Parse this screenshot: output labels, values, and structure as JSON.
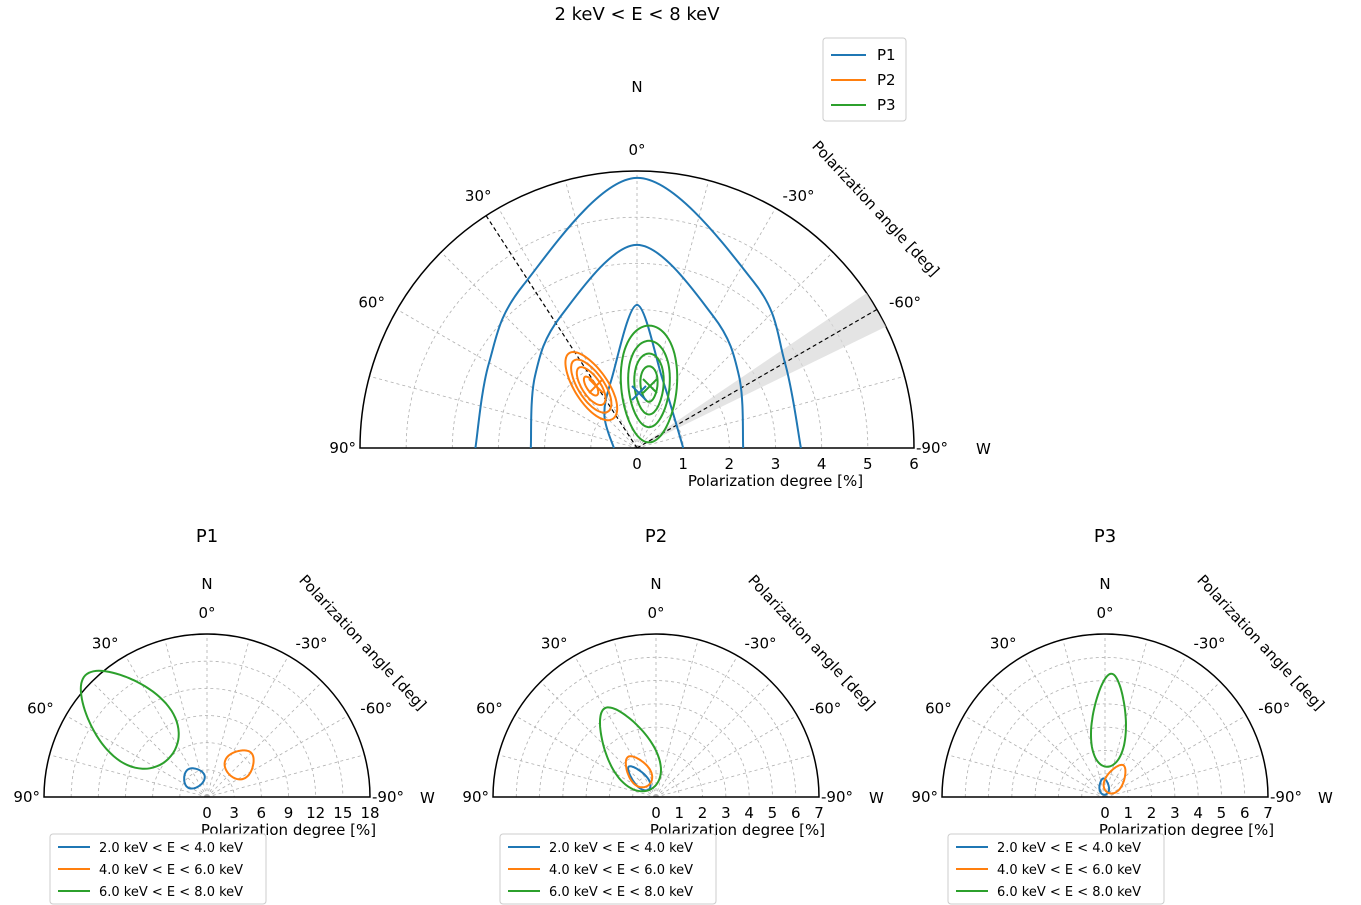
{
  "chart_data": [
    {
      "type": "polar-contour",
      "title": "2 keV < E < 8 keV",
      "xlabel": "Polarization degree [%]",
      "angle_label": "Polarization angle [deg]",
      "north_label": "N",
      "west_label": "W",
      "angle_range": [
        -90,
        90
      ],
      "angle_ticks": [
        "90°",
        "60°",
        "30°",
        "0°",
        "-30°",
        "-60°",
        "-90°"
      ],
      "radius_range": [
        0,
        6
      ],
      "radius_ticks": [
        "0",
        "1",
        "2",
        "3",
        "4",
        "5",
        "6"
      ],
      "grid": true,
      "legend_position": "top-right",
      "series": [
        {
          "name": "P1",
          "color": "#1f77b4",
          "best_fit": {
            "pd": 0.3,
            "pa": 90
          },
          "contours": [
            [
              [
                0.5,
                90
              ],
              [
                1.0,
                45
              ],
              [
                1.6,
                20
              ],
              [
                3.1,
                0
              ],
              [
                1.6,
                -20
              ],
              [
                1.05,
                -50
              ],
              [
                1.0,
                -90
              ]
            ],
            [
              [
                2.3,
                90
              ],
              [
                2.7,
                55
              ],
              [
                3.3,
                30
              ],
              [
                4.4,
                0
              ],
              [
                3.3,
                -30
              ],
              [
                2.7,
                -55
              ],
              [
                2.3,
                -90
              ]
            ],
            [
              [
                3.5,
                90
              ],
              [
                3.7,
                60
              ],
              [
                4.3,
                35
              ],
              [
                5.85,
                0
              ],
              [
                4.4,
                -35
              ],
              [
                3.7,
                -60
              ],
              [
                3.55,
                -90
              ]
            ]
          ]
        },
        {
          "name": "P2",
          "color": "#ff7f0e",
          "best_fit": {
            "pd": 1.35,
            "pa": 38
          },
          "contours": [
            [
              [
                1.35,
                38
              ],
              [
                0.25,
                40
              ]
            ],
            [
              [
                1.35,
                38
              ],
              [
                0.5,
                38
              ]
            ],
            [
              [
                1.35,
                38
              ],
              [
                0.7,
                38
              ]
            ],
            [
              [
                1.35,
                38
              ],
              [
                0.9,
                38
              ]
            ]
          ]
        },
        {
          "name": "P3",
          "color": "#2ca02c",
          "best_fit": {
            "pd": 1.3,
            "pa": -10
          },
          "contours": [
            [
              [
                1.3,
                -10
              ],
              [
                0.35,
                25
              ]
            ],
            [
              [
                1.3,
                -10
              ],
              [
                0.6,
                25
              ]
            ],
            [
              [
                1.3,
                -10
              ],
              [
                0.85,
                25
              ]
            ],
            [
              [
                1.3,
                -10
              ],
              [
                1.15,
                25
              ]
            ]
          ]
        }
      ],
      "reference_line": {
        "pa": 33,
        "style": "dashed"
      },
      "reference_band": {
        "pa": -60,
        "width_deg": 8
      }
    },
    {
      "type": "polar-contour",
      "title": "P1",
      "xlabel": "Polarization degree [%]",
      "angle_label": "Polarization angle [deg]",
      "north_label": "N",
      "west_label": "W",
      "angle_range": [
        -90,
        90
      ],
      "angle_ticks": [
        "90°",
        "60°",
        "30°",
        "0°",
        "-30°",
        "-60°",
        "-90°"
      ],
      "radius_range": [
        0,
        18
      ],
      "radius_ticks": [
        "0",
        "3",
        "6",
        "9",
        "12",
        "15",
        "18"
      ],
      "legend_position": "bottom",
      "series": [
        {
          "name": "2.0 keV < E < 4.0 keV",
          "color": "#1f77b4",
          "center": {
            "pd": 2.6,
            "pa": 35
          },
          "size": [
            2.3,
            2.2
          ]
        },
        {
          "name": "4.0 keV < E < 6.0 keV",
          "color": "#ff7f0e",
          "center": {
            "pd": 5.2,
            "pa": -45
          },
          "size": [
            3.0,
            3.4
          ]
        },
        {
          "name": "6.0 keV < E < 8.0 keV",
          "color": "#2ca02c",
          "center": {
            "pd": 12.5,
            "pa": 45
          },
          "size": [
            8.0,
            13.0
          ]
        }
      ]
    },
    {
      "type": "polar-contour",
      "title": "P2",
      "xlabel": "Polarization degree [%]",
      "angle_label": "Polarization angle [deg]",
      "north_label": "N",
      "west_label": "W",
      "angle_range": [
        -90,
        90
      ],
      "angle_ticks": [
        "90°",
        "60°",
        "30°",
        "0°",
        "-30°",
        "-60°",
        "-90°"
      ],
      "radius_range": [
        0,
        7
      ],
      "radius_ticks": [
        "0",
        "1",
        "2",
        "3",
        "4",
        "5",
        "6",
        "7"
      ],
      "legend_position": "bottom",
      "series": [
        {
          "name": "2.0 keV < E < 4.0 keV",
          "color": "#1f77b4",
          "center": {
            "pd": 1.1,
            "pa": 42
          },
          "size": [
            0.55,
            1.3
          ]
        },
        {
          "name": "4.0 keV < E < 6.0 keV",
          "color": "#ff7f0e",
          "center": {
            "pd": 1.35,
            "pa": 35
          },
          "size": [
            0.9,
            1.5
          ]
        },
        {
          "name": "6.0 keV < E < 8.0 keV",
          "color": "#2ca02c",
          "center": {
            "pd": 2.4,
            "pa": 30
          },
          "size": [
            1.95,
            4.0
          ]
        }
      ]
    },
    {
      "type": "polar-contour",
      "title": "P3",
      "xlabel": "Polarization degree [%]",
      "angle_label": "Polarization angle [deg]",
      "north_label": "N",
      "west_label": "W",
      "angle_range": [
        -90,
        90
      ],
      "angle_ticks": [
        "90°",
        "60°",
        "30°",
        "0°",
        "-30°",
        "-60°",
        "-90°"
      ],
      "radius_range": [
        0,
        7
      ],
      "radius_ticks": [
        "0",
        "1",
        "2",
        "3",
        "4",
        "5",
        "6",
        "7"
      ],
      "legend_position": "bottom",
      "series": [
        {
          "name": "2.0 keV < E < 4.0 keV",
          "color": "#1f77b4",
          "center": {
            "pd": 0.45,
            "pa": 5
          },
          "size": [
            0.4,
            0.7
          ]
        },
        {
          "name": "4.0 keV < E < 6.0 keV",
          "color": "#ff7f0e",
          "center": {
            "pd": 0.9,
            "pa": -30
          },
          "size": [
            0.75,
            1.35
          ]
        },
        {
          "name": "6.0 keV < E < 8.0 keV",
          "color": "#2ca02c",
          "center": {
            "pd": 3.3,
            "pa": -3
          },
          "size": [
            1.45,
            4.0
          ]
        }
      ]
    }
  ]
}
